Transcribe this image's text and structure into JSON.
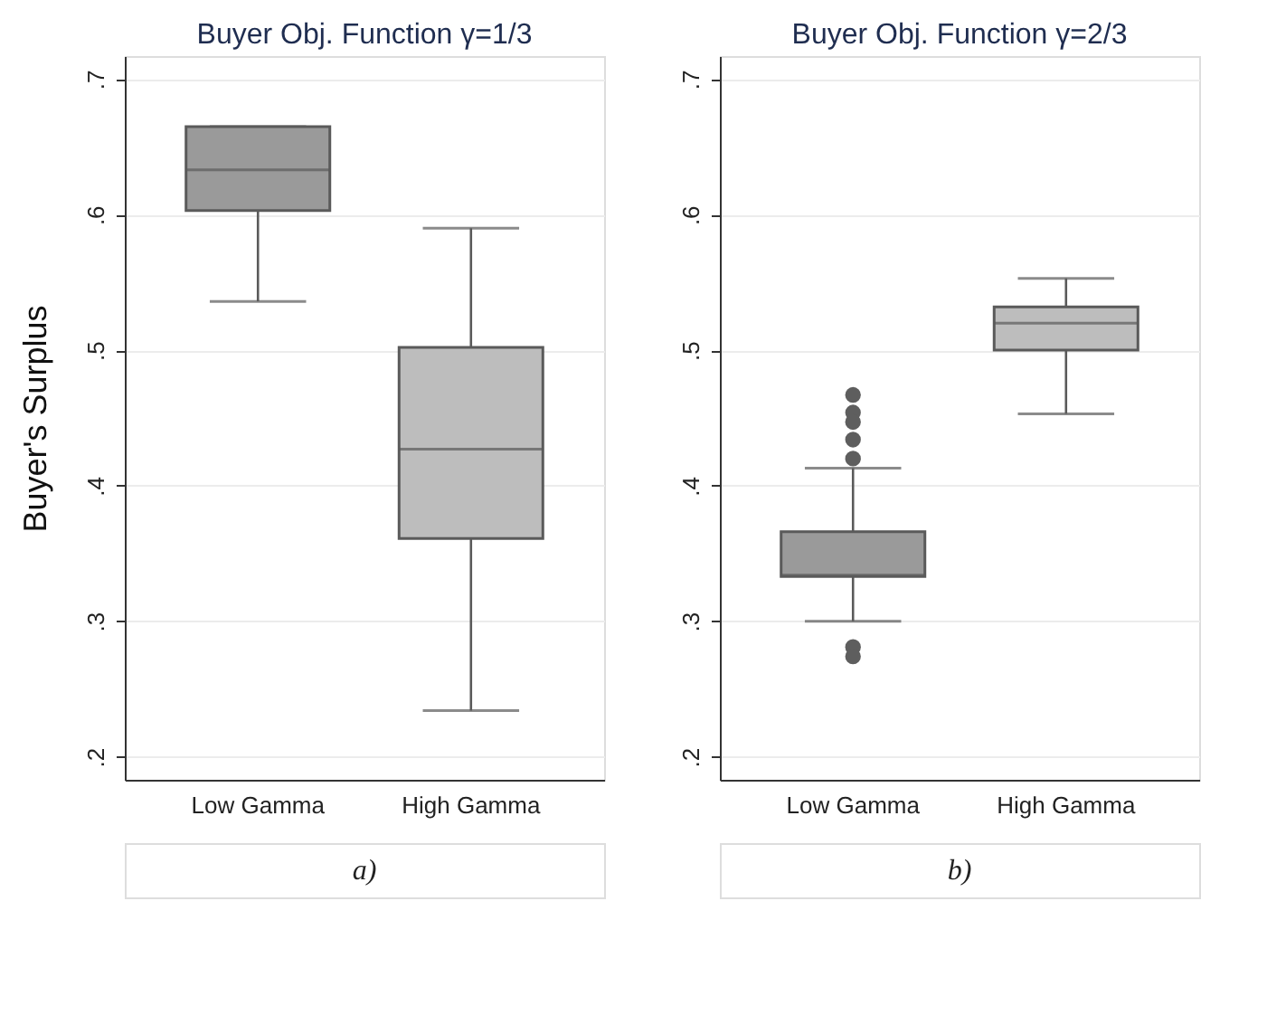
{
  "chart_data": [
    {
      "type": "box",
      "title": "Buyer Obj. Function γ=1/3",
      "ylabel": "Buyer's Surplus",
      "categories": [
        "Low Gamma",
        "High Gamma"
      ],
      "colors": [
        "#9a9a9a",
        "#bdbdbd"
      ],
      "boxes": [
        {
          "low": 0.536,
          "q1": 0.603,
          "median": 0.633,
          "q3": 0.665,
          "high": 0.665
        },
        {
          "low": 0.234,
          "q1": 0.361,
          "median": 0.427,
          "q3": 0.502,
          "high": 0.59
        }
      ],
      "ylim": [
        0.183,
        0.717
      ],
      "yticks": [
        {
          "value": 0.2,
          "label": ".2"
        },
        {
          "value": 0.3,
          "label": ".3"
        },
        {
          "value": 0.4,
          "label": ".4"
        },
        {
          "value": 0.5,
          "label": ".5"
        },
        {
          "value": 0.6,
          "label": ".6"
        },
        {
          "value": 0.7,
          "label": ".7"
        }
      ],
      "grid": "y",
      "annotations": [
        "a)"
      ]
    },
    {
      "type": "box",
      "title": "Buyer Obj. Function γ=2/3",
      "categories": [
        "Low Gamma",
        "High Gamma"
      ],
      "colors": [
        "#9a9a9a",
        "#bdbdbd"
      ],
      "boxes": [
        {
          "low": 0.3,
          "q1": 0.333,
          "median": 0.334,
          "q3": 0.366,
          "high": 0.413,
          "outliers": [
            0.467,
            0.454,
            0.447,
            0.434,
            0.42,
            0.281,
            0.274
          ]
        },
        {
          "low": 0.453,
          "q1": 0.5,
          "median": 0.52,
          "q3": 0.532,
          "high": 0.553
        }
      ],
      "ylim": [
        0.183,
        0.717
      ],
      "yticks": [
        {
          "value": 0.2,
          "label": ".2"
        },
        {
          "value": 0.3,
          "label": ".3"
        },
        {
          "value": 0.4,
          "label": ".4"
        },
        {
          "value": 0.5,
          "label": ".5"
        },
        {
          "value": 0.6,
          "label": ".6"
        },
        {
          "value": 0.7,
          "label": ".7"
        }
      ],
      "grid": "y",
      "annotations": [
        "b)"
      ]
    }
  ]
}
